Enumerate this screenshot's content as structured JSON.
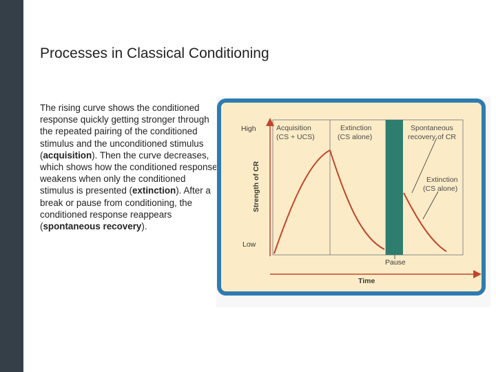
{
  "slide": {
    "title": "Processes in Classical Conditioning",
    "paragraph": [
      {
        "text": "The rising curve shows the conditioned response quickly getting stronger through the repeated pairing of the conditioned stimulus and the unconditioned stimulus (",
        "bold": false
      },
      {
        "text": "acquisition",
        "bold": true
      },
      {
        "text": "). Then the curve decreases, which shows how the conditioned response weakens when only the conditioned stimulus is presented (",
        "bold": false
      },
      {
        "text": "extinction",
        "bold": true
      },
      {
        "text": "). After a break or pause from conditioning, the conditioned response reappears (",
        "bold": false
      },
      {
        "text": "spontaneous recovery",
        "bold": true
      },
      {
        "text": ").",
        "bold": false
      }
    ]
  },
  "figure": {
    "y_axis_label": "Strength of CR",
    "y_high_label": "High",
    "y_low_label": "Low",
    "x_axis_label": "Time",
    "pause_label": "Pause",
    "phases": [
      {
        "line1": "Acquisition",
        "line2": "(CS + UCS)"
      },
      {
        "line1": "Extinction",
        "line2": "(CS alone)"
      },
      {
        "line1": "Spontaneous",
        "line2": "recovery of CR"
      }
    ],
    "extinction2": {
      "line1": "Extinction",
      "line2": "(CS alone)"
    },
    "colors": {
      "frame": "#2f7bb0",
      "panel_bg": "#fbecc7",
      "curve": "#c2442c",
      "pause_bar": "#2e7d6e",
      "axis_text": "#3a3a3a",
      "phase_text": "#4a4a4a"
    }
  }
}
